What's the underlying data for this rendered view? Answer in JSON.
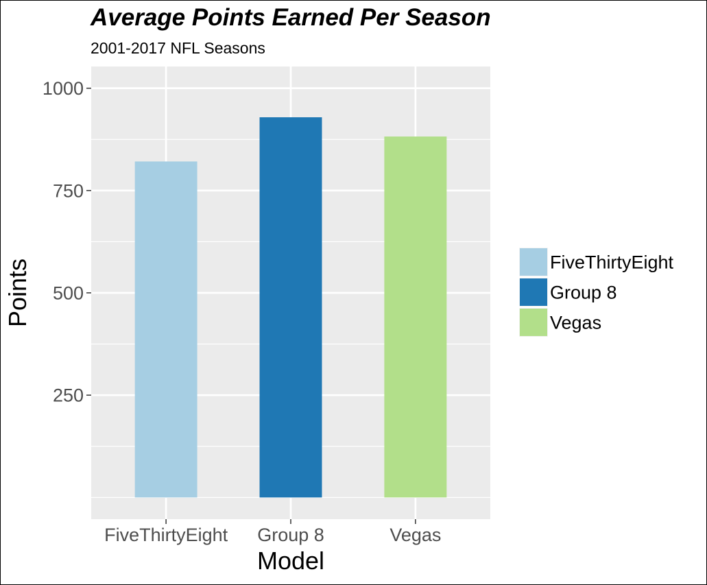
{
  "chart_data": {
    "type": "bar",
    "title": "Average Points Earned Per Season",
    "subtitle": "2001-2017 NFL Seasons",
    "xlabel": "Model",
    "ylabel": "Points",
    "categories": [
      "FiveThirtyEight",
      "Group 8",
      "Vegas"
    ],
    "values": [
      821,
      929,
      882
    ],
    "colors": [
      "#a6cee3",
      "#1f78b4",
      "#b2df8a"
    ],
    "ylim": [
      -53,
      1053
    ],
    "yticks": [
      250,
      500,
      750,
      1000
    ],
    "ytick_labels": [
      "250",
      "500",
      "750",
      "1000"
    ],
    "y_minor_gridlines": [
      0,
      125,
      375,
      625,
      875
    ],
    "grid": true,
    "panel_background": "#ebebeb",
    "grid_color": "#ffffff",
    "legend": {
      "position": "right",
      "entries": [
        "FiveThirtyEight",
        "Group 8",
        "Vegas"
      ]
    }
  }
}
